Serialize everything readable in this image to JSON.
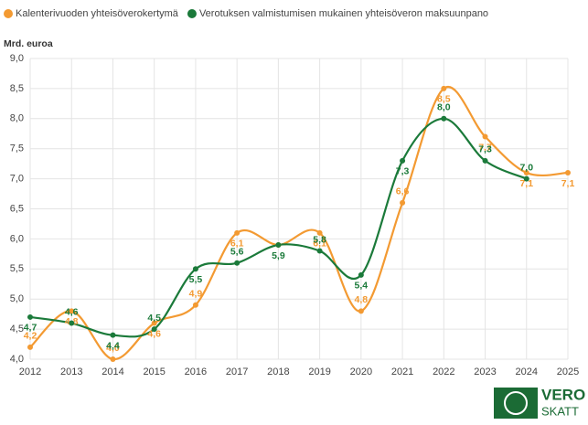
{
  "chart_data": {
    "type": "line",
    "y_axis_label": "Mrd. euroa",
    "categories": [
      "2012",
      "2013",
      "2014",
      "2015",
      "2016",
      "2017",
      "2018",
      "2019",
      "2020",
      "2021",
      "2022",
      "2023",
      "2024",
      "2025"
    ],
    "series": [
      {
        "name": "Kalenterivuoden yhteisöverokertymä",
        "color": "#f39a32",
        "values": [
          4.2,
          4.8,
          4.0,
          4.6,
          4.9,
          6.1,
          5.9,
          6.1,
          4.8,
          6.6,
          8.5,
          7.7,
          7.1,
          7.1
        ],
        "value_labels": [
          "4,2",
          "4,8",
          "4,0",
          "4,6",
          "4,9",
          "6,1",
          null,
          "6,1",
          "4,8",
          "6,6",
          "8,5",
          "7,7",
          "7,1",
          "7,1"
        ]
      },
      {
        "name": "Verotuksen valmistumisen mukainen yhteisöveron maksuunpano",
        "color": "#1b7a3a",
        "values": [
          4.7,
          4.6,
          4.4,
          4.5,
          5.5,
          5.6,
          5.9,
          5.8,
          5.4,
          7.3,
          8.0,
          7.3,
          7.0,
          null
        ],
        "value_labels": [
          "4,7",
          "4,6",
          "4,4",
          "4,5",
          "5,5",
          "5,6",
          "5,9",
          "5,8",
          "5,4",
          "7,3",
          "8,0",
          "7,3",
          "7,0",
          null
        ]
      }
    ],
    "ylim": [
      4,
      9
    ],
    "yticks": [
      {
        "value": 4,
        "label": "4,0"
      },
      {
        "value": 4.5,
        "label": "4,5"
      },
      {
        "value": 5,
        "label": "5,0"
      },
      {
        "value": 5.5,
        "label": "5,5"
      },
      {
        "value": 6,
        "label": "6,0"
      },
      {
        "value": 6.5,
        "label": "6,5"
      },
      {
        "value": 7,
        "label": "7,0"
      },
      {
        "value": 7.5,
        "label": "7,5"
      },
      {
        "value": 8,
        "label": "8,0"
      },
      {
        "value": 8.5,
        "label": "8,5"
      },
      {
        "value": 9,
        "label": "9,0"
      }
    ],
    "grid": true
  },
  "logo": {
    "line1": "VERO",
    "line2": "SKATT"
  }
}
